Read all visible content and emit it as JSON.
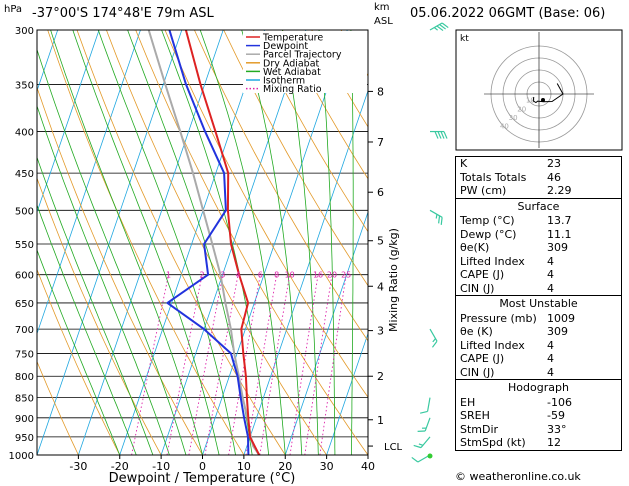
{
  "header": {
    "hpa_label": "hPa",
    "location": "-37°00'S  174°48'E  79m  ASL",
    "km_label": "km",
    "asl_label": "ASL",
    "date": "05.06.2022  06GMT  (Base: 06)"
  },
  "footer": {
    "credit": "© weatheronline.co.uk"
  },
  "chart_data": {
    "type": "line",
    "xlabel": "Dewpoint / Temperature (°C)",
    "ylabel_right": "Mixing Ratio (g/kg)",
    "pressure_levels": [
      300,
      350,
      400,
      450,
      500,
      550,
      600,
      650,
      700,
      750,
      800,
      850,
      900,
      950,
      1000
    ],
    "x_ticks": [
      -30,
      -20,
      -10,
      0,
      10,
      20,
      30,
      40
    ],
    "xlim": [
      -40,
      40
    ],
    "ylim_hpa": [
      1000,
      300
    ],
    "skew": 35,
    "km_ticks": [
      {
        "km": "1",
        "p": 905
      },
      {
        "km": "2",
        "p": 800
      },
      {
        "km": "3",
        "p": 703
      },
      {
        "km": "4",
        "p": 620
      },
      {
        "km": "5",
        "p": 545
      },
      {
        "km": "6",
        "p": 475
      },
      {
        "km": "7",
        "p": 412
      },
      {
        "km": "8",
        "p": 357
      }
    ],
    "lcl": {
      "label": "LCL",
      "p": 975
    },
    "mixing_ratio_labels": [
      "1",
      "2",
      "3",
      "4",
      "6",
      "8",
      "10",
      "16",
      "20",
      "25"
    ],
    "mixing_ratio_values": [
      1,
      2,
      3,
      4,
      6,
      8,
      10,
      16,
      20,
      25
    ],
    "legend": [
      "Temperature",
      "Dewpoint",
      "Parcel Trajectory",
      "Dry Adiabat",
      "Wet Adiabat",
      "Isotherm",
      "Mixing Ratio"
    ],
    "colors": {
      "temperature": "#dd2222",
      "dewpoint": "#2233dd",
      "parcel": "#aaaaaa",
      "dry_adiabat": "#e39a2a",
      "wet_adiabat": "#22aa22",
      "isotherm": "#1fa7e0",
      "mixing_ratio": "#dd22aa"
    },
    "series": [
      {
        "name": "Temperature",
        "points": [
          [
            1000,
            13.7
          ],
          [
            950,
            10
          ],
          [
            900,
            8
          ],
          [
            850,
            6
          ],
          [
            800,
            4
          ],
          [
            750,
            1.5
          ],
          [
            700,
            -1
          ],
          [
            650,
            -1.5
          ],
          [
            600,
            -6
          ],
          [
            550,
            -10.5
          ],
          [
            500,
            -14
          ],
          [
            450,
            -17
          ],
          [
            400,
            -23.5
          ],
          [
            350,
            -31
          ],
          [
            300,
            -39
          ]
        ]
      },
      {
        "name": "Dewpoint",
        "points": [
          [
            1000,
            11.1
          ],
          [
            950,
            9.5
          ],
          [
            900,
            7
          ],
          [
            850,
            4.5
          ],
          [
            800,
            2
          ],
          [
            750,
            -1.5
          ],
          [
            700,
            -10
          ],
          [
            650,
            -21
          ],
          [
            600,
            -13.5
          ],
          [
            550,
            -17
          ],
          [
            500,
            -14.5
          ],
          [
            450,
            -18
          ],
          [
            400,
            -26
          ],
          [
            350,
            -34.5
          ],
          [
            300,
            -43
          ]
        ]
      },
      {
        "name": "Parcel Trajectory",
        "points": [
          [
            1000,
            13.7
          ],
          [
            975,
            11.5
          ],
          [
            950,
            10.2
          ],
          [
            900,
            7.8
          ],
          [
            850,
            5
          ],
          [
            800,
            2.3
          ],
          [
            750,
            -0.7
          ],
          [
            700,
            -3.5
          ],
          [
            650,
            -7
          ],
          [
            600,
            -10.5
          ],
          [
            550,
            -15
          ],
          [
            500,
            -20
          ],
          [
            450,
            -25.5
          ],
          [
            400,
            -32
          ],
          [
            350,
            -39.5
          ],
          [
            300,
            -48
          ]
        ]
      }
    ]
  },
  "hodograph": {
    "label": "kt",
    "rings": [
      "10",
      "20",
      "30",
      "40"
    ]
  },
  "wind_barbs": [
    {
      "p": 300,
      "dir": 240,
      "spd": 35
    },
    {
      "p": 400,
      "dir": 270,
      "spd": 40
    },
    {
      "p": 500,
      "dir": 300,
      "spd": 25
    },
    {
      "p": 700,
      "dir": 330,
      "spd": 15
    },
    {
      "p": 850,
      "dir": 10,
      "spd": 12
    },
    {
      "p": 900,
      "dir": 20,
      "spd": 15
    },
    {
      "p": 950,
      "dir": 40,
      "spd": 15
    },
    {
      "p": 1000,
      "dir": 60,
      "spd": 10
    }
  ],
  "indices": {
    "rows": [
      {
        "label": "K",
        "value": "23"
      },
      {
        "label": "Totals Totals",
        "value": "46"
      },
      {
        "label": "PW (cm)",
        "value": "2.29"
      }
    ]
  },
  "surface": {
    "title": "Surface",
    "rows": [
      {
        "label": "Temp (°C)",
        "value": "13.7"
      },
      {
        "label": "Dewp (°C)",
        "value": "11.1"
      },
      {
        "label": "θe(K)",
        "value": "309"
      },
      {
        "label": "Lifted Index",
        "value": "4"
      },
      {
        "label": "CAPE (J)",
        "value": "4"
      },
      {
        "label": "CIN (J)",
        "value": "4"
      }
    ]
  },
  "most_unstable": {
    "title": "Most Unstable",
    "rows": [
      {
        "label": "Pressure (mb)",
        "value": "1009"
      },
      {
        "label": "θe (K)",
        "value": "309"
      },
      {
        "label": "Lifted Index",
        "value": "4"
      },
      {
        "label": "CAPE (J)",
        "value": "4"
      },
      {
        "label": "CIN (J)",
        "value": "4"
      }
    ]
  },
  "hodograph_table": {
    "title": "Hodograph",
    "rows": [
      {
        "label": "EH",
        "value": "-106"
      },
      {
        "label": "SREH",
        "value": "-59"
      },
      {
        "label": "StmDir",
        "value": "33°"
      },
      {
        "label": "StmSpd (kt)",
        "value": "12"
      }
    ]
  }
}
